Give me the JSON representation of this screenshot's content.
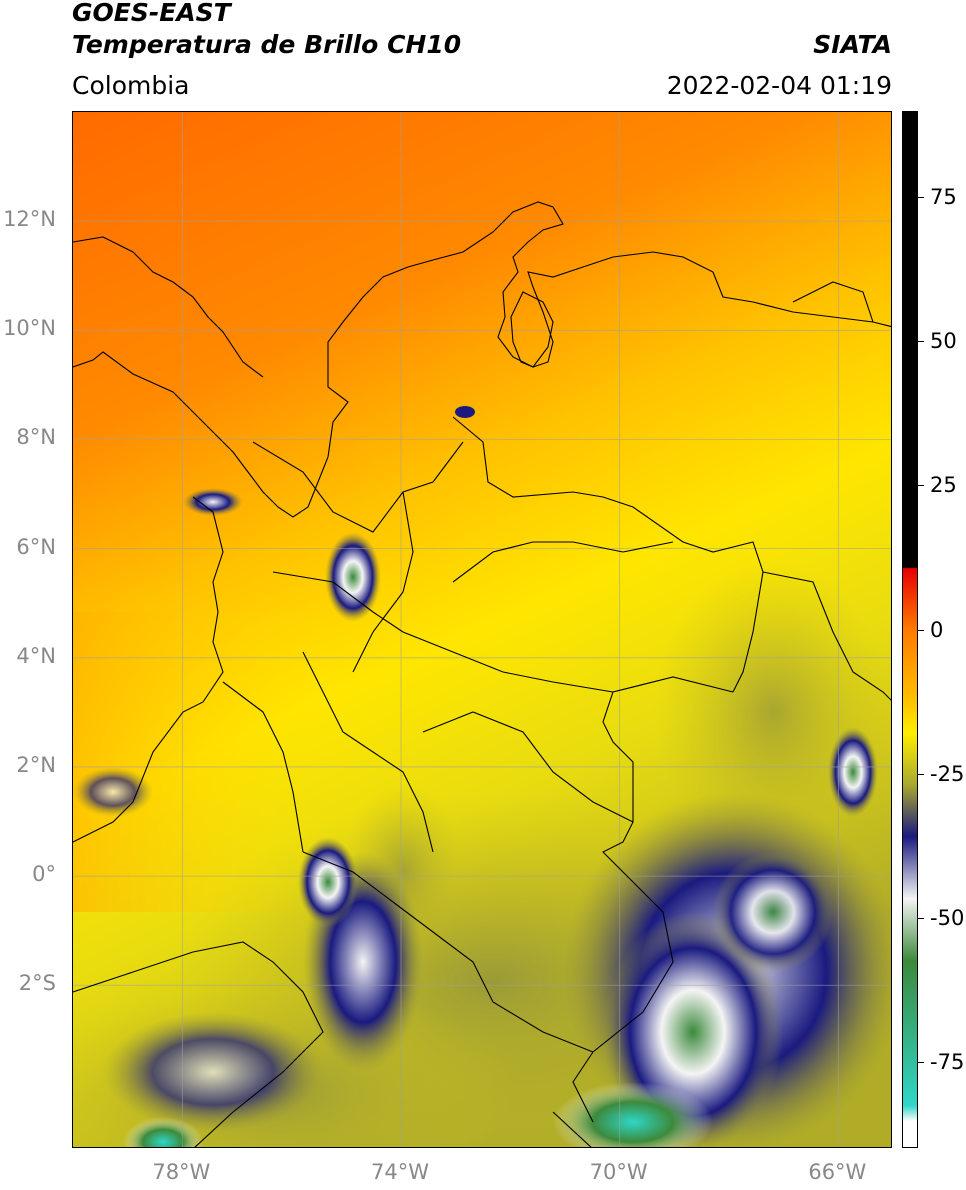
{
  "header": {
    "satellite": "GOES-EAST",
    "product": "Temperatura de Brillo CH10",
    "agency": "SIATA",
    "region": "Colombia",
    "datetime": "2022-02-04 01:19"
  },
  "map": {
    "lat_ticks": [
      {
        "label": "12°N",
        "value": 12
      },
      {
        "label": "10°N",
        "value": 10
      },
      {
        "label": "8°N",
        "value": 8
      },
      {
        "label": "6°N",
        "value": 6
      },
      {
        "label": "4°N",
        "value": 4
      },
      {
        "label": "2°N",
        "value": 2
      },
      {
        "label": "0°",
        "value": 0
      },
      {
        "label": "2°S",
        "value": -2
      }
    ],
    "lon_ticks": [
      {
        "label": "78°W",
        "value": -78
      },
      {
        "label": "74°W",
        "value": -74
      },
      {
        "label": "70°W",
        "value": -70
      },
      {
        "label": "66°W",
        "value": -66
      }
    ],
    "lat_range": [
      -5,
      14
    ],
    "lon_range": [
      -80,
      -65
    ]
  },
  "colorbar": {
    "ticks": [
      {
        "label": "75",
        "value": 75
      },
      {
        "label": "50",
        "value": 50
      },
      {
        "label": "25",
        "value": 25
      },
      {
        "label": "0",
        "value": 0
      },
      {
        "label": "-25",
        "value": -25
      },
      {
        "label": "-50",
        "value": -50
      },
      {
        "label": "-75",
        "value": -75
      }
    ],
    "range": [
      -90,
      90
    ],
    "colors": {
      "hot": "#000000",
      "red": "#e60000",
      "orange": "#ff7a00",
      "yellow": "#ffee00",
      "olive": "#a8a830",
      "navy": "#1a1a80",
      "white": "#f4f4f4",
      "green": "#3c8a3c",
      "cyan": "#2fd6c8"
    }
  }
}
